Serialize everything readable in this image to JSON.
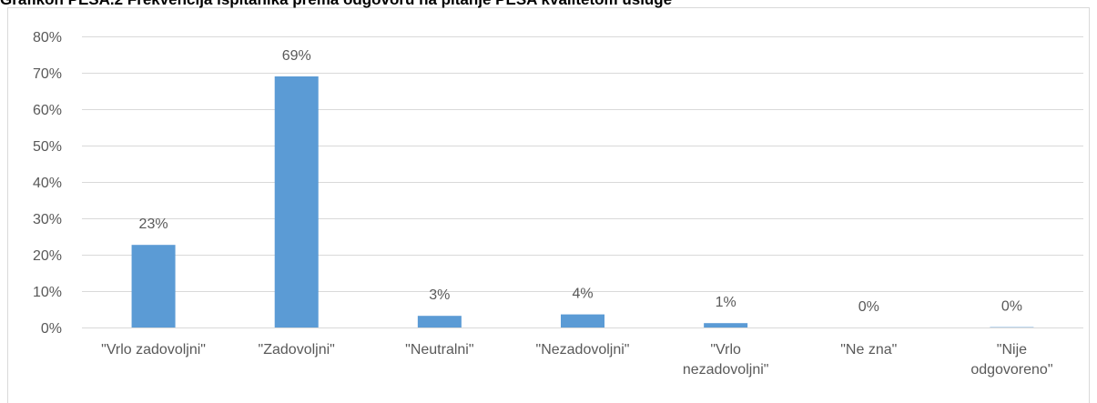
{
  "chart_data": {
    "type": "bar",
    "title": "Grafikon PESA.2 Frekvencija ispitanika prema odgovoru na pitanje PESA kvalitetom usluge",
    "categories": [
      "\"Vrlo zadovoljni\"",
      "\"Zadovoljni\"",
      "\"Neutralni\"",
      "\"Nezadovoljni\"",
      "\"Vrlo nezadovoljni\"",
      "\"Ne zna\"",
      "\"Nije odgovoreno\""
    ],
    "values": [
      22.7,
      69,
      3.2,
      3.6,
      1.2,
      0,
      0.1
    ],
    "value_labels": [
      "23%",
      "69%",
      "3%",
      "4%",
      "1%",
      "0%",
      "0%"
    ],
    "color": "#5b9bd5",
    "ylim": [
      0,
      80
    ],
    "yticks": [
      {
        "value": 0,
        "label": "0%"
      },
      {
        "value": 10,
        "label": "10%"
      },
      {
        "value": 20,
        "label": "20%"
      },
      {
        "value": 30,
        "label": "30%"
      },
      {
        "value": 40,
        "label": "40%"
      },
      {
        "value": 50,
        "label": "50%"
      },
      {
        "value": 60,
        "label": "60%"
      },
      {
        "value": 70,
        "label": "70%"
      },
      {
        "value": 80,
        "label": "80%"
      }
    ],
    "grid": true
  }
}
